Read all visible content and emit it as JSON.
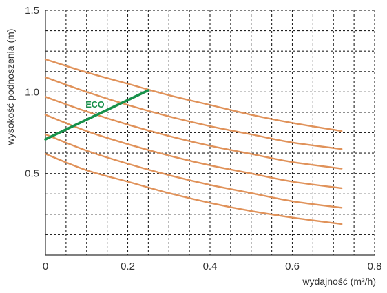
{
  "chart_data": {
    "type": "line",
    "xlabel": "wydajność (m³/h)",
    "ylabel": "wysokość podnoszenia (m)",
    "xlim": [
      0,
      0.8
    ],
    "ylim": [
      0,
      1.5
    ],
    "x_ticks": [
      "0",
      "0.2",
      "0.4",
      "0.6",
      "0.8"
    ],
    "y_ticks": [
      "0.5",
      "1.0",
      "1.5"
    ],
    "grid": true,
    "grid_style": "dashed",
    "curve_color": "#e0925a",
    "eco_color": "#17914a",
    "series": [
      {
        "x": [
          0,
          0.1,
          0.2,
          0.3,
          0.4,
          0.5,
          0.6,
          0.72
        ],
        "y": [
          1.2,
          1.12,
          1.05,
          0.98,
          0.92,
          0.86,
          0.81,
          0.76
        ]
      },
      {
        "x": [
          0,
          0.1,
          0.2,
          0.3,
          0.4,
          0.5,
          0.6,
          0.72
        ],
        "y": [
          1.09,
          1.0,
          0.92,
          0.85,
          0.79,
          0.74,
          0.69,
          0.65
        ]
      },
      {
        "x": [
          0,
          0.1,
          0.2,
          0.3,
          0.4,
          0.5,
          0.6,
          0.72
        ],
        "y": [
          0.97,
          0.88,
          0.8,
          0.73,
          0.67,
          0.62,
          0.57,
          0.53
        ]
      },
      {
        "x": [
          0,
          0.1,
          0.2,
          0.3,
          0.4,
          0.5,
          0.6,
          0.72
        ],
        "y": [
          0.86,
          0.76,
          0.68,
          0.61,
          0.55,
          0.5,
          0.45,
          0.41
        ]
      },
      {
        "x": [
          0,
          0.1,
          0.2,
          0.3,
          0.4,
          0.5,
          0.6,
          0.72
        ],
        "y": [
          0.74,
          0.64,
          0.56,
          0.49,
          0.43,
          0.38,
          0.33,
          0.29
        ]
      },
      {
        "x": [
          0,
          0.1,
          0.2,
          0.3,
          0.4,
          0.5,
          0.6,
          0.72
        ],
        "y": [
          0.62,
          0.52,
          0.45,
          0.38,
          0.32,
          0.27,
          0.23,
          0.19
        ]
      }
    ],
    "eco_line": {
      "name": "ECO",
      "x": [
        0,
        0.25
      ],
      "y": [
        0.71,
        1.01
      ]
    }
  }
}
